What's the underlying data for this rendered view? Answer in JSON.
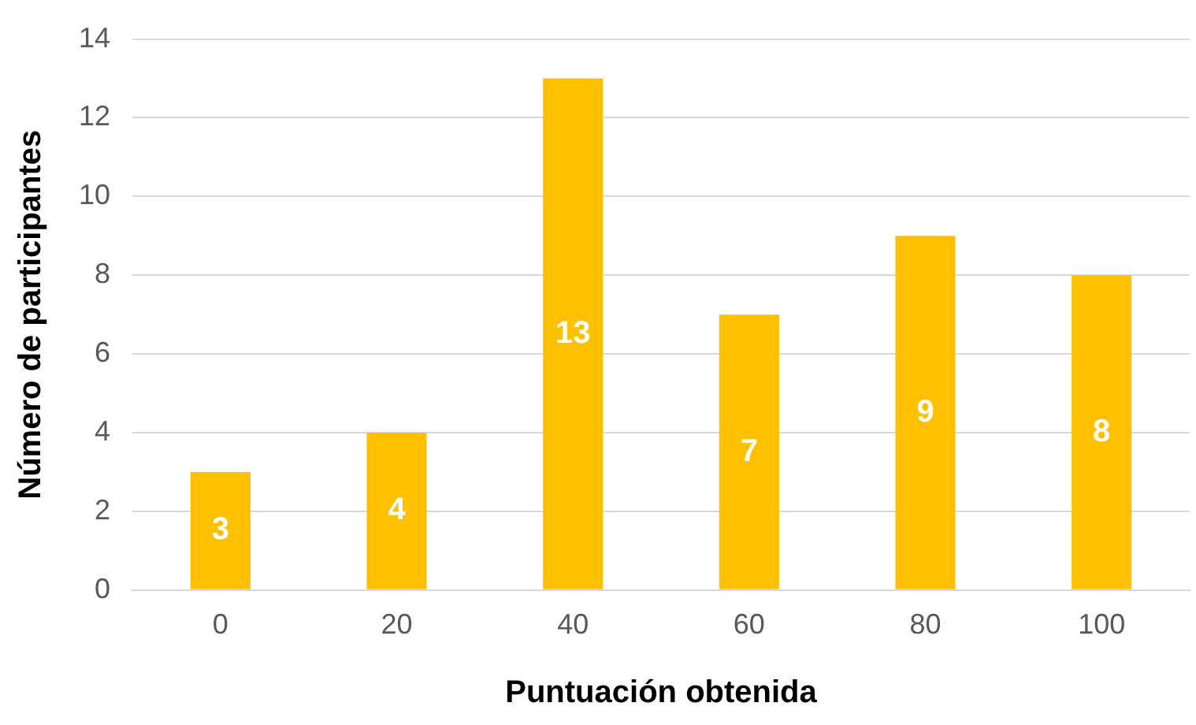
{
  "chart_data": {
    "type": "bar",
    "xlabel": "Puntuación obtenida",
    "ylabel": "Número de participantes",
    "categories": [
      "0",
      "20",
      "40",
      "60",
      "80",
      "100"
    ],
    "values": [
      3,
      4,
      13,
      7,
      9,
      8
    ],
    "color": "#ffc000",
    "ylim": [
      0,
      14
    ],
    "yticks": [
      0,
      2,
      4,
      6,
      8,
      10,
      12,
      14
    ],
    "grid": "y",
    "data_labels": true,
    "legend": false
  }
}
